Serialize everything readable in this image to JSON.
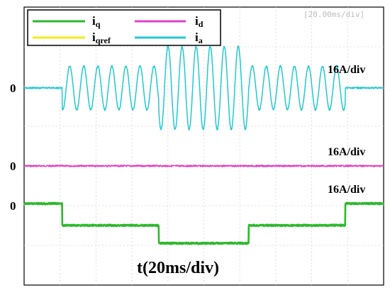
{
  "chart_data": {
    "type": "line",
    "timebase_label": "[20.00ms/div]",
    "time_label": "t(20ms/div)",
    "zero_label": "0",
    "legend": [
      {
        "main": "i",
        "sub": "q",
        "color": "#2db82d"
      },
      {
        "main": "i",
        "sub": "d",
        "color": "#e040c8"
      },
      {
        "main": "i",
        "sub": "qref",
        "color": "#f2ee1a"
      },
      {
        "main": "i",
        "sub": "a",
        "color": "#22c8d2"
      }
    ],
    "channels": [
      {
        "name": "ia",
        "scale_label": "16A/div",
        "color": "#22c8d2",
        "kind": "sine",
        "segments": [
          {
            "t_start": 0,
            "t_end": 34,
            "amplitude_div": 0
          },
          {
            "t_start": 34,
            "t_end": 120,
            "amplitude_div": 0.55
          },
          {
            "t_start": 120,
            "t_end": 200,
            "amplitude_div": 1.05
          },
          {
            "t_start": 200,
            "t_end": 286,
            "amplitude_div": 0.55
          },
          {
            "t_start": 286,
            "t_end": 320,
            "amplitude_div": 0
          }
        ],
        "period_ms": 12.5
      },
      {
        "name": "id",
        "scale_label": "16A/div",
        "color": "#e040c8",
        "kind": "steps",
        "steps": [
          {
            "t_start": 0,
            "t_end": 320,
            "value_div": 0
          }
        ]
      },
      {
        "name": "iq",
        "scale_label": "16A/div",
        "color": "#2db82d",
        "kind": "steps",
        "steps": [
          {
            "t_start": 0,
            "t_end": 34,
            "value_div": 0
          },
          {
            "t_start": 34,
            "t_end": 120,
            "value_div": -0.55
          },
          {
            "t_start": 120,
            "t_end": 200,
            "value_div": -1.0
          },
          {
            "t_start": 200,
            "t_end": 286,
            "value_div": -0.55
          },
          {
            "t_start": 286,
            "t_end": 320,
            "value_div": 0
          }
        ]
      },
      {
        "name": "iqref",
        "color": "#f2ee1a",
        "kind": "steps",
        "steps": [
          {
            "t_start": 0,
            "t_end": 34,
            "value_div": 0
          },
          {
            "t_start": 34,
            "t_end": 120,
            "value_div": -0.55
          },
          {
            "t_start": 120,
            "t_end": 200,
            "value_div": -1.0
          },
          {
            "t_start": 200,
            "t_end": 286,
            "value_div": -0.55
          },
          {
            "t_start": 286,
            "t_end": 320,
            "value_div": 0
          }
        ]
      }
    ],
    "xlim_ms": [
      0,
      320
    ],
    "grid": true
  }
}
